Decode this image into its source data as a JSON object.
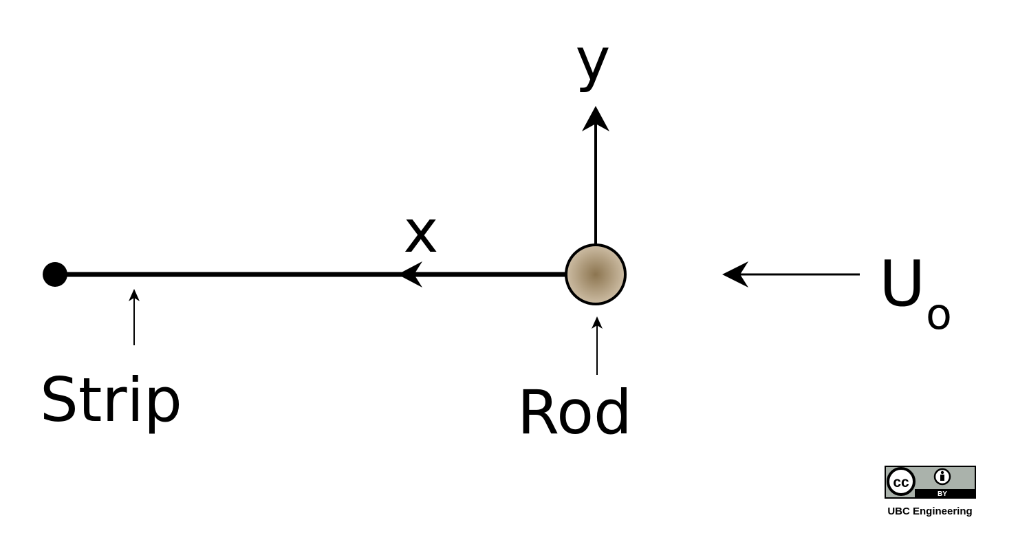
{
  "labels": {
    "y_axis": "y",
    "x_axis": "x",
    "strip": "Strip",
    "rod": "Rod",
    "velocity_main": "U",
    "velocity_sub": "o"
  },
  "license": {
    "cc_text": "cc",
    "by_text": "BY",
    "credit": "UBC Engineering"
  },
  "colors": {
    "ink": "#000000",
    "rod_center": "#8c7550",
    "rod_edge": "#cdbda4",
    "badge_gray": "#aab2ab"
  },
  "icons": {
    "cc": "cc-icon",
    "attribution": "person-icon"
  }
}
